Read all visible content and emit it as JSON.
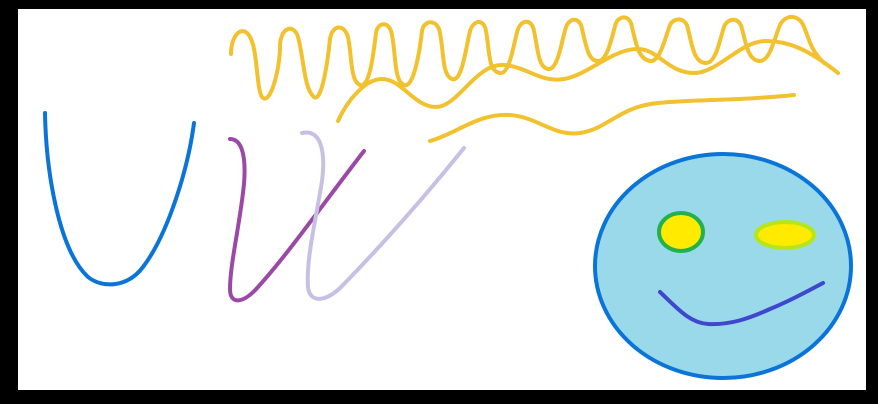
{
  "colors": {
    "frame": "#000000",
    "canvas": "#ffffff",
    "blue_stroke": "#0a74d8",
    "purple_stroke": "#9a4aa6",
    "lavender_stroke": "#c8c0e4",
    "yellow_stroke": "#f2c12e",
    "face_fill": "#9ad9ea",
    "face_outline": "#0a74d8",
    "left_eye_fill": "#ffea00",
    "left_eye_outline": "#22b14c",
    "right_eye_fill": "#ffea00",
    "right_eye_outline": "#b5e61d",
    "mouth_stroke": "#3f48cc"
  },
  "icons": {
    "drawing": "hand-drawn-doodle",
    "face": "smiley-face-icon"
  }
}
